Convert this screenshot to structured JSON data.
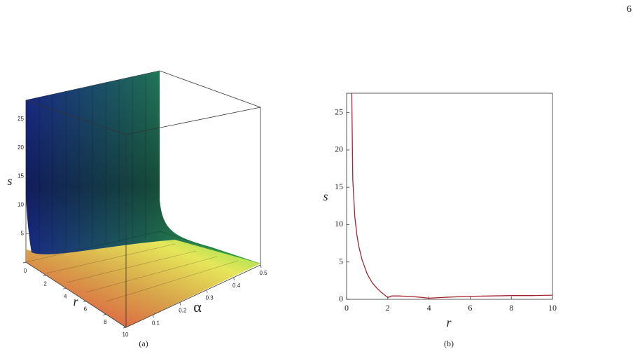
{
  "page_number": "6",
  "chart_data": [
    {
      "type": "surface",
      "caption": "(a)",
      "xlabel": "r",
      "ylabel": "α",
      "zlabel": "s",
      "xlim": [
        0,
        10
      ],
      "xticks": [
        0,
        2,
        4,
        6,
        8,
        10
      ],
      "ylim": [
        0,
        0.5
      ],
      "yticks": [
        0.1,
        0.2,
        0.3,
        0.4,
        0.5
      ],
      "zlim": [
        0,
        28.3
      ],
      "zticks": [
        5,
        10,
        15,
        20,
        25
      ]
    },
    {
      "type": "line",
      "caption": "(b)",
      "xlabel": "r",
      "ylabel": "s",
      "xlim": [
        0,
        10
      ],
      "xticks": [
        0,
        2,
        4,
        6,
        8,
        10
      ],
      "ylim": [
        0,
        27.6
      ],
      "yticks": [
        0,
        5,
        10,
        15,
        20,
        25
      ],
      "color": "#a3262f",
      "x": [
        0.25,
        0.3,
        0.4,
        0.5,
        0.6,
        0.75,
        1,
        1.25,
        1.5,
        1.75,
        2,
        2.2,
        2.5,
        3,
        3.5,
        4,
        5,
        6,
        7,
        8,
        9,
        10
      ],
      "values": [
        27.6,
        16,
        11,
        8.6,
        7,
        5.3,
        3.4,
        2.2,
        1.4,
        0.8,
        0.25,
        0.45,
        0.45,
        0.4,
        0.3,
        0.15,
        0.3,
        0.4,
        0.45,
        0.5,
        0.5,
        0.55
      ]
    }
  ]
}
